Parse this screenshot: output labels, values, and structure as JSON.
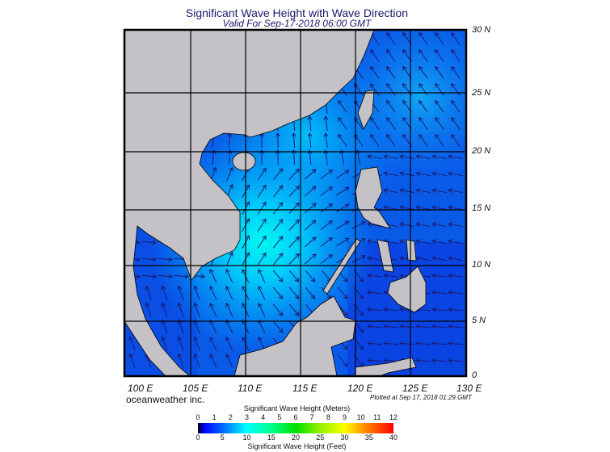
{
  "title": "Significant Wave Height with Wave Direction",
  "subtitle": "Valid For Sep-17-2018 06:00 GMT",
  "lat_labels": [
    "30 N",
    "25 N",
    "20 N",
    "15 N",
    "10 N",
    "5 N",
    "0"
  ],
  "lon_labels": [
    "100 E",
    "105 E",
    "110 E",
    "115 E",
    "120 E",
    "125 E",
    "130 E"
  ],
  "brand": "oceanweather inc.",
  "plotted": "Plotted at Sep 17, 2018 01:29 GMT",
  "colorbar": {
    "meters_title": "Significant Wave Height (Meters)",
    "meters_ticks": [
      "0",
      "1",
      "2",
      "3",
      "4",
      "5",
      "6",
      "7",
      "8",
      "9",
      "10",
      "11",
      "12"
    ],
    "feet_title": "Significant Wave Height (Feet)",
    "feet_ticks": [
      "0",
      "5",
      "10",
      "15",
      "20",
      "25",
      "30",
      "35",
      "40"
    ]
  },
  "colors": {
    "land": "#c4c2c6",
    "sea_low": "#0a3ee6",
    "sea_mid": "#0a78f5",
    "sea_high": "#00f0ff",
    "arrow": "#1a1a70",
    "grid": "#000000"
  }
}
